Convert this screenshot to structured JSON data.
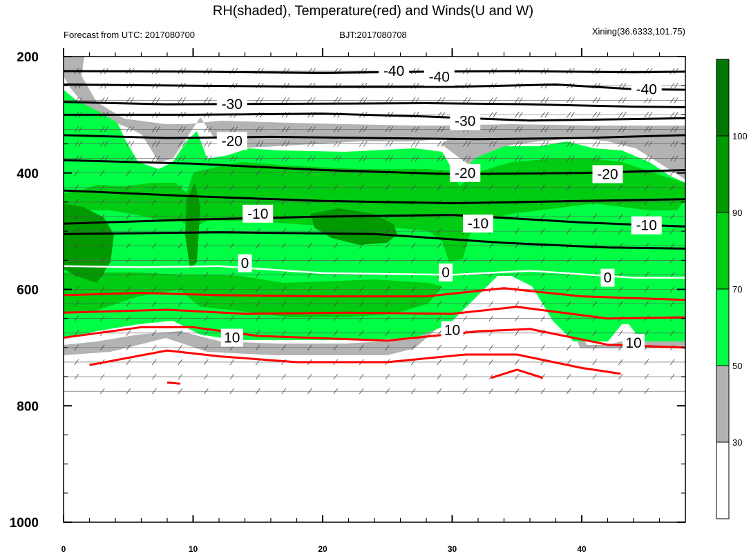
{
  "title": "RH(shaded), Temperature(red) and Winds(U and W)",
  "subtitle_left": "Forecast from UTC: 2017080700",
  "subtitle_center": "BJT:2017080708",
  "subtitle_right": "Xining(36.6333,101.75)",
  "chart_data": {
    "type": "area",
    "x_range": [
      0,
      48
    ],
    "x_ticks": [
      "0",
      "10",
      "20",
      "30",
      "40"
    ],
    "x_tick_values": [
      0,
      10,
      20,
      30,
      40
    ],
    "y_range": [
      200,
      1000
    ],
    "y_scale": "linear, inverted (pressure)",
    "y_ticks": [
      "200",
      "400",
      "600",
      "800",
      "1000"
    ],
    "y_tick_values": [
      200,
      400,
      600,
      800,
      1000
    ],
    "rh_levels": [
      "30",
      "50",
      "70",
      "90",
      "100"
    ],
    "rh_level_values": [
      30,
      50,
      70,
      90,
      100
    ],
    "rh_colors": [
      "#ffffff",
      "#b3b3b3",
      "#00ff44",
      "#00cc11",
      "#009900",
      "#007700"
    ],
    "temperature_contours": [
      {
        "label": "-40",
        "value": -40,
        "color": "#000000",
        "points": [
          [
            0,
            225
          ],
          [
            10,
            226
          ],
          [
            20,
            228
          ],
          [
            28,
            226
          ],
          [
            35,
            225
          ],
          [
            44,
            227
          ],
          [
            48,
            226
          ]
        ]
      },
      {
        "label": "-40",
        "value": -40,
        "color": "#000000",
        "points": [
          [
            0,
            248
          ],
          [
            10,
            250
          ],
          [
            20,
            252
          ],
          [
            30,
            252
          ],
          [
            38,
            248
          ],
          [
            44,
            256
          ],
          [
            48,
            257
          ]
        ]
      },
      {
        "label": "-30",
        "value": -30,
        "color": "#000000",
        "points": [
          [
            0,
            278
          ],
          [
            8,
            282
          ],
          [
            20,
            281
          ],
          [
            28,
            280
          ],
          [
            36,
            282
          ],
          [
            44,
            286
          ],
          [
            48,
            287
          ]
        ]
      },
      {
        "label": "-30",
        "value": -30,
        "color": "#000000",
        "points": [
          [
            0,
            300
          ],
          [
            10,
            300
          ],
          [
            20,
            298
          ],
          [
            28,
            303
          ],
          [
            36,
            310
          ],
          [
            42,
            308
          ],
          [
            48,
            306
          ]
        ]
      },
      {
        "label": "-20",
        "value": -20,
        "color": "#000000",
        "points": [
          [
            0,
            335
          ],
          [
            8,
            340
          ],
          [
            16,
            338
          ],
          [
            24,
            340
          ],
          [
            32,
            342
          ],
          [
            40,
            340
          ],
          [
            48,
            335
          ]
        ]
      },
      {
        "label": "-20",
        "value": -20,
        "color": "#000000",
        "points": [
          [
            0,
            378
          ],
          [
            10,
            384
          ],
          [
            20,
            395
          ],
          [
            30,
            402
          ],
          [
            40,
            400
          ],
          [
            48,
            395
          ]
        ]
      },
      {
        "label": "-10",
        "value": -10,
        "color": "#000000",
        "points": [
          [
            0,
            430
          ],
          [
            10,
            440
          ],
          [
            20,
            448
          ],
          [
            30,
            452
          ],
          [
            40,
            448
          ],
          [
            48,
            445
          ]
        ]
      },
      {
        "label": "-10",
        "value": -10,
        "color": "#000000",
        "points": [
          [
            0,
            487
          ],
          [
            10,
            480
          ],
          [
            20,
            475
          ],
          [
            30,
            472
          ],
          [
            40,
            485
          ],
          [
            48,
            492
          ]
        ]
      },
      {
        "label": "-10",
        "value": -10,
        "color": "#000000",
        "points": [
          [
            0,
            505
          ],
          [
            12,
            502
          ],
          [
            24,
            505
          ],
          [
            34,
            520
          ],
          [
            42,
            528
          ],
          [
            48,
            530
          ]
        ]
      },
      {
        "label": "0",
        "value": 0,
        "color": "#ffffff",
        "points": [
          [
            0,
            560
          ],
          [
            6,
            562
          ],
          [
            12,
            560
          ],
          [
            20,
            572
          ],
          [
            30,
            575
          ],
          [
            36,
            568
          ],
          [
            44,
            580
          ],
          [
            48,
            580
          ]
        ]
      },
      {
        "label": "",
        "value": 5,
        "color": "#ff0000",
        "points": [
          [
            0,
            610
          ],
          [
            6,
            606
          ],
          [
            12,
            610
          ],
          [
            20,
            612
          ],
          [
            28,
            612
          ],
          [
            34,
            598
          ],
          [
            40,
            612
          ],
          [
            48,
            618
          ]
        ]
      },
      {
        "label": "",
        "value": 5,
        "color": "#ff0000",
        "points": [
          [
            0,
            640
          ],
          [
            8,
            635
          ],
          [
            14,
            642
          ],
          [
            22,
            640
          ],
          [
            30,
            642
          ],
          [
            35,
            630
          ],
          [
            42,
            650
          ],
          [
            48,
            648
          ]
        ]
      },
      {
        "label": "10",
        "value": 10,
        "color": "#ff0000",
        "points": [
          [
            0,
            683
          ],
          [
            6,
            665
          ],
          [
            10,
            665
          ],
          [
            15,
            680
          ],
          [
            25,
            688
          ],
          [
            32,
            672
          ],
          [
            36,
            668
          ],
          [
            42,
            695
          ],
          [
            48,
            700
          ]
        ]
      },
      {
        "label": "",
        "value": 15,
        "color": "#ff0000",
        "points": [
          [
            2,
            730
          ],
          [
            8,
            705
          ],
          [
            12,
            715
          ],
          [
            18,
            725
          ],
          [
            25,
            725
          ],
          [
            31,
            712
          ],
          [
            35,
            712
          ],
          [
            40,
            735
          ],
          [
            43,
            745
          ]
        ]
      },
      {
        "label": "",
        "value": 20,
        "color": "#ff0000",
        "points": [
          [
            8,
            760
          ],
          [
            9,
            762
          ]
        ]
      },
      {
        "label": "",
        "value": 20,
        "color": "#ff0000",
        "points": [
          [
            33,
            752
          ],
          [
            35,
            738
          ],
          [
            37,
            752
          ]
        ]
      }
    ],
    "contour_labels": [
      {
        "text": "-40",
        "x": 25.5,
        "y": 225
      },
      {
        "text": "-40",
        "x": 29,
        "y": 235
      },
      {
        "text": "-40",
        "x": 45,
        "y": 256
      },
      {
        "text": "-30",
        "x": 13,
        "y": 282
      },
      {
        "text": "-30",
        "x": 31,
        "y": 311
      },
      {
        "text": "-20",
        "x": 13,
        "y": 345
      },
      {
        "text": "-20",
        "x": 31,
        "y": 400
      },
      {
        "text": "-20",
        "x": 42,
        "y": 402
      },
      {
        "text": "-10",
        "x": 15,
        "y": 470
      },
      {
        "text": "-10",
        "x": 32,
        "y": 487
      },
      {
        "text": "-10",
        "x": 45,
        "y": 490
      },
      {
        "text": "0",
        "x": 14,
        "y": 555
      },
      {
        "text": "0",
        "x": 29.5,
        "y": 571
      },
      {
        "text": "0",
        "x": 42,
        "y": 580
      },
      {
        "text": "10",
        "x": 13,
        "y": 683
      },
      {
        "text": "10",
        "x": 30,
        "y": 670
      },
      {
        "text": "10",
        "x": 44,
        "y": 692
      }
    ]
  }
}
